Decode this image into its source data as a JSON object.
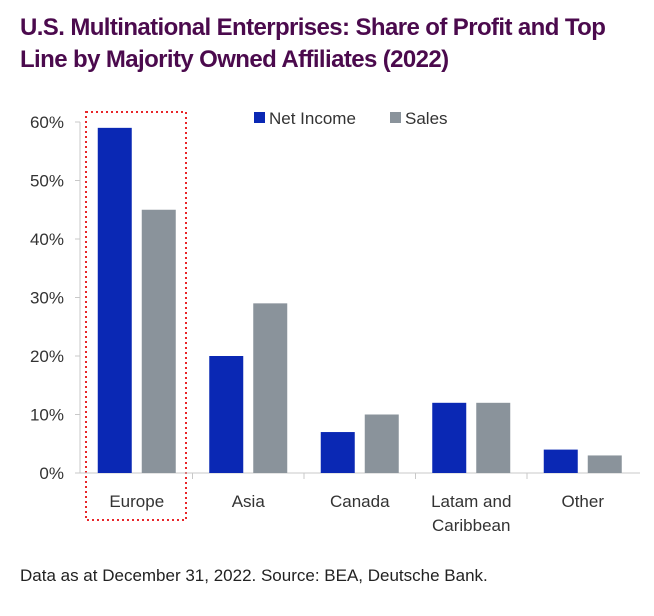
{
  "title": "U.S. Multinational Enterprises: Share of Profit and Top Line by Majority Owned Affiliates (2022)",
  "footnote": "Data as at December 31, 2022. Source: BEA, Deutsche Bank.",
  "chart_data": {
    "type": "bar",
    "title": "U.S. Multinational Enterprises: Share of Profit and Top Line by Majority Owned Affiliates (2022)",
    "categories": [
      [
        "Europe"
      ],
      [
        "Asia"
      ],
      [
        "Canada"
      ],
      [
        "Latam and",
        "Caribbean"
      ],
      [
        "Other"
      ]
    ],
    "series": [
      {
        "name": "Net Income",
        "color": "#0a28b4",
        "values": [
          59,
          20,
          7,
          12,
          4
        ]
      },
      {
        "name": "Sales",
        "color": "#8a939b",
        "values": [
          45,
          29,
          10,
          12,
          3
        ]
      }
    ],
    "yticks": [
      "0%",
      "10%",
      "20%",
      "30%",
      "40%",
      "50%",
      "60%"
    ],
    "ylim": [
      0,
      60
    ],
    "xlabel": "",
    "ylabel": "",
    "legend": "top-center",
    "grid": false,
    "highlight": {
      "category": "Europe",
      "style": "red dotted box",
      "color": "#e8262a"
    }
  }
}
